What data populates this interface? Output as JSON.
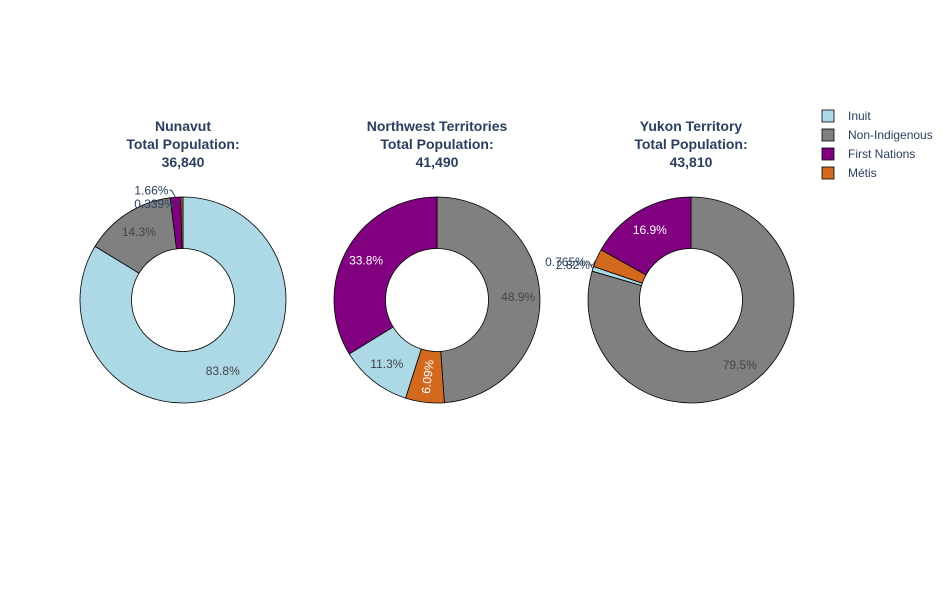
{
  "chart_data": {
    "type": "pie",
    "hole": 0.5,
    "legend": {
      "placement": "top-right",
      "entries": [
        {
          "name": "Inuit",
          "color": "#add8e6"
        },
        {
          "name": "Non-Indigenous",
          "color": "#808080"
        },
        {
          "name": "First Nations",
          "color": "#800080"
        },
        {
          "name": "Métis",
          "color": "#d2691e"
        }
      ]
    },
    "charts": [
      {
        "title_lines": [
          "Nunavut",
          "Total Population:",
          "36,840"
        ],
        "slices": [
          {
            "name": "Inuit",
            "value": 83.8,
            "label": "83.8%"
          },
          {
            "name": "Non-Indigenous",
            "value": 14.3,
            "label": "14.3%"
          },
          {
            "name": "First Nations",
            "value": 1.66,
            "label": "1.66%"
          },
          {
            "name": "Métis",
            "value": 0.339,
            "label": "0.339%"
          }
        ]
      },
      {
        "title_lines": [
          "Northwest Territories",
          "Total Population:",
          "41,490"
        ],
        "slices": [
          {
            "name": "Non-Indigenous",
            "value": 48.9,
            "label": "48.9%"
          },
          {
            "name": "Métis",
            "value": 6.09,
            "label": "6.09%"
          },
          {
            "name": "Inuit",
            "value": 11.3,
            "label": "11.3%"
          },
          {
            "name": "First Nations",
            "value": 33.8,
            "label": "33.8%"
          }
        ]
      },
      {
        "title_lines": [
          "Yukon Territory",
          "Total Population:",
          "43,810"
        ],
        "slices": [
          {
            "name": "Non-Indigenous",
            "value": 79.5,
            "label": "79.5%"
          },
          {
            "name": "Inuit",
            "value": 0.765,
            "label": "0.765%"
          },
          {
            "name": "Métis",
            "value": 2.82,
            "label": "2.82%"
          },
          {
            "name": "First Nations",
            "value": 16.9,
            "label": "16.9%"
          }
        ]
      }
    ]
  }
}
